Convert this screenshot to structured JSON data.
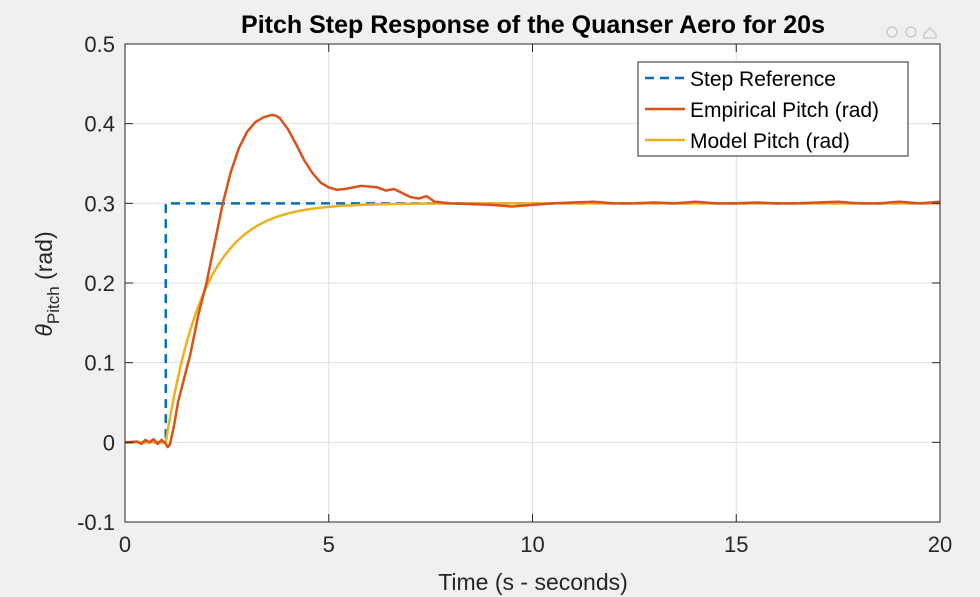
{
  "chart_data": {
    "type": "line",
    "title": "Pitch Step Response of the Quanser Aero for 20s",
    "xlabel": "Time (s - seconds)",
    "ylabel_symbol": "θ",
    "ylabel_subscript": "Pitch",
    "ylabel_unit": " (rad)",
    "xlim": [
      0,
      20
    ],
    "ylim": [
      -0.1,
      0.5
    ],
    "xticks": [
      0,
      5,
      10,
      15,
      20
    ],
    "xtick_labels": [
      "0",
      "5",
      "10",
      "15",
      "20"
    ],
    "yticks": [
      -0.1,
      0,
      0.1,
      0.2,
      0.3,
      0.4,
      0.5
    ],
    "ytick_labels": [
      "-0.1",
      "0",
      "0.1",
      "0.2",
      "0.3",
      "0.4",
      "0.5"
    ],
    "grid": true,
    "legend_position": "top-right",
    "series": [
      {
        "name": "Step Reference",
        "style": "dashed",
        "color": "#0072bd",
        "x": [
          0,
          1,
          1,
          20
        ],
        "y": [
          0,
          0,
          0.3,
          0.3
        ]
      },
      {
        "name": "Empirical Pitch (rad)",
        "style": "solid",
        "color": "#d95319",
        "x": [
          0,
          0.3,
          0.4,
          0.5,
          0.6,
          0.7,
          0.8,
          0.9,
          1.0,
          1.05,
          1.1,
          1.2,
          1.3,
          1.4,
          1.5,
          1.6,
          1.8,
          2.0,
          2.2,
          2.4,
          2.6,
          2.8,
          3.0,
          3.2,
          3.4,
          3.6,
          3.7,
          3.8,
          4.0,
          4.2,
          4.4,
          4.6,
          4.8,
          5.0,
          5.2,
          5.4,
          5.6,
          5.8,
          6.0,
          6.2,
          6.4,
          6.6,
          6.8,
          7.0,
          7.2,
          7.4,
          7.6,
          8.0,
          8.5,
          9.0,
          9.5,
          10.0,
          10.5,
          11.0,
          11.5,
          12.0,
          12.5,
          13.0,
          13.5,
          14.0,
          14.5,
          15.0,
          15.5,
          16.0,
          16.5,
          17.0,
          17.5,
          18.0,
          18.5,
          19.0,
          19.5,
          20.0
        ],
        "y": [
          0,
          0.001,
          -0.002,
          0.003,
          0.0,
          0.004,
          -0.002,
          0.003,
          -0.002,
          -0.006,
          -0.003,
          0.02,
          0.05,
          0.07,
          0.09,
          0.11,
          0.16,
          0.2,
          0.25,
          0.3,
          0.34,
          0.37,
          0.39,
          0.402,
          0.408,
          0.411,
          0.41,
          0.407,
          0.393,
          0.374,
          0.354,
          0.338,
          0.326,
          0.32,
          0.317,
          0.318,
          0.32,
          0.322,
          0.321,
          0.32,
          0.316,
          0.318,
          0.313,
          0.308,
          0.306,
          0.309,
          0.302,
          0.3,
          0.299,
          0.298,
          0.296,
          0.298,
          0.3,
          0.301,
          0.302,
          0.3,
          0.3,
          0.301,
          0.3,
          0.302,
          0.3,
          0.3,
          0.301,
          0.3,
          0.3,
          0.301,
          0.302,
          0.3,
          0.3,
          0.302,
          0.3,
          0.302
        ]
      },
      {
        "name": "Model Pitch (rad)",
        "style": "solid",
        "color": "#edb120",
        "model": {
          "t0": 1.0,
          "k": 0.3,
          "tau": 0.95,
          "x_end": 20
        }
      }
    ]
  }
}
